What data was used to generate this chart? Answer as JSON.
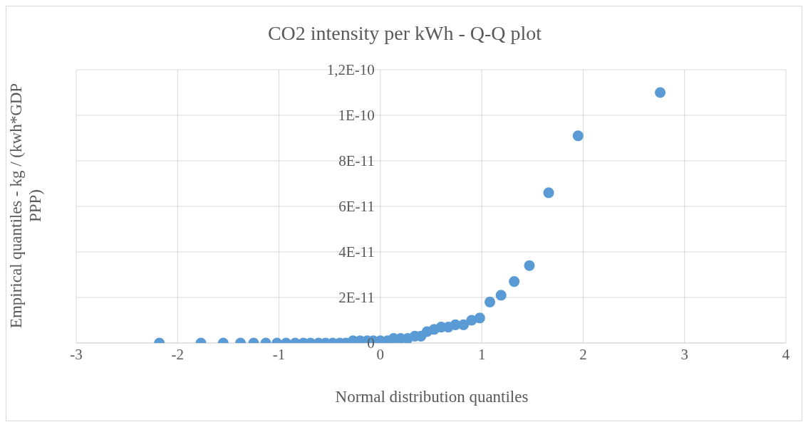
{
  "chart_data": {
    "type": "scatter",
    "title": "CO2 intensity per kWh - Q-Q plot",
    "xlabel": "Normal distribution quantiles",
    "ylabel": "Empirical quantiles - kg / (kwh*GDP PPP)",
    "x": [
      -2.18,
      -1.77,
      -1.55,
      -1.38,
      -1.25,
      -1.13,
      -1.02,
      -0.93,
      -0.84,
      -0.76,
      -0.69,
      -0.61,
      -0.54,
      -0.47,
      -0.4,
      -0.34,
      -0.27,
      -0.2,
      -0.13,
      -0.07,
      0,
      0.07,
      0.13,
      0.2,
      0.27,
      0.34,
      0.4,
      0.46,
      0.53,
      0.6,
      0.67,
      0.74,
      0.82,
      0.9,
      0.98,
      1.08,
      1.19,
      1.32,
      1.47,
      1.66,
      1.95,
      2.76
    ],
    "series": [
      {
        "color": "#5b9bd5",
        "values": [
          0,
          0,
          0,
          0,
          0,
          0,
          0,
          0,
          0,
          0,
          0,
          0,
          0,
          0,
          0,
          0,
          1e-12,
          1e-12,
          1e-12,
          1e-12,
          1e-12,
          1e-12,
          2e-12,
          2e-12,
          2e-12,
          3e-12,
          3e-12,
          5e-12,
          6e-12,
          7e-12,
          7e-12,
          8e-12,
          8e-12,
          1e-11,
          1.1e-11,
          1.8e-11,
          2.1e-11,
          2.7e-11,
          3.4e-11,
          6.6e-11,
          9.1e-11,
          1.1e-10
        ]
      }
    ],
    "xlim": [
      -3,
      4
    ],
    "xticks": [
      -3,
      -2,
      -1,
      0,
      1,
      2,
      3,
      4
    ],
    "ylim": [
      0,
      1.2e-10
    ],
    "yticks": [
      {
        "value": 0,
        "label": "0"
      },
      {
        "value": 2e-11,
        "label": "2E-11"
      },
      {
        "value": 4e-11,
        "label": "4E-11"
      },
      {
        "value": 6e-11,
        "label": "6E-11"
      },
      {
        "value": 8e-11,
        "label": "8E-11"
      },
      {
        "value": 1e-10,
        "label": "1E-10"
      },
      {
        "value": 1.2e-10,
        "label": "1,2E-10"
      }
    ],
    "grid": true,
    "marker": "circle",
    "legend": false
  }
}
